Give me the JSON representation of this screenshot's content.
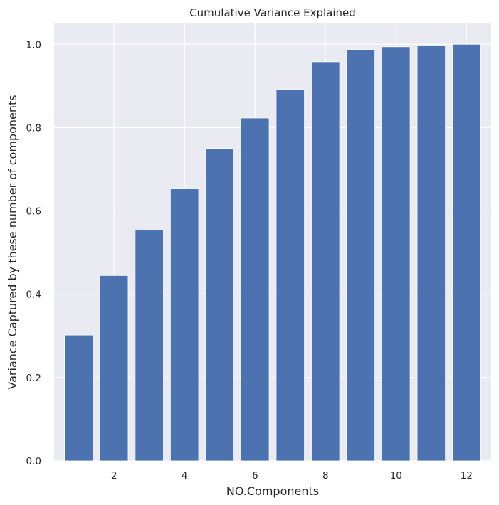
{
  "chart_data": {
    "type": "bar",
    "title": "Cumulative Variance Explained",
    "xlabel": "NO.Components",
    "ylabel": "Variance Captured by these number of components",
    "x": [
      1,
      2,
      3,
      4,
      5,
      6,
      7,
      8,
      9,
      10,
      11,
      12
    ],
    "values": [
      0.302,
      0.445,
      0.554,
      0.653,
      0.75,
      0.823,
      0.892,
      0.958,
      0.987,
      0.994,
      0.998,
      1.0
    ],
    "xlim": [
      0.3,
      12.7
    ],
    "ylim": [
      0,
      1.05
    ],
    "xticks": [
      2,
      4,
      6,
      8,
      10,
      12
    ],
    "yticks": [
      0.0,
      0.2,
      0.4,
      0.6,
      0.8,
      1.0
    ],
    "xtick_labels": [
      "2",
      "4",
      "6",
      "8",
      "10",
      "12"
    ],
    "ytick_labels": [
      "0.0",
      "0.2",
      "0.4",
      "0.6",
      "0.8",
      "1.0"
    ],
    "grid": true,
    "legend": "none",
    "colors": {
      "bar": "#4c72b0",
      "plot_background": "#eaeaf2",
      "grid": "#ffffff",
      "text": "#262626"
    }
  }
}
